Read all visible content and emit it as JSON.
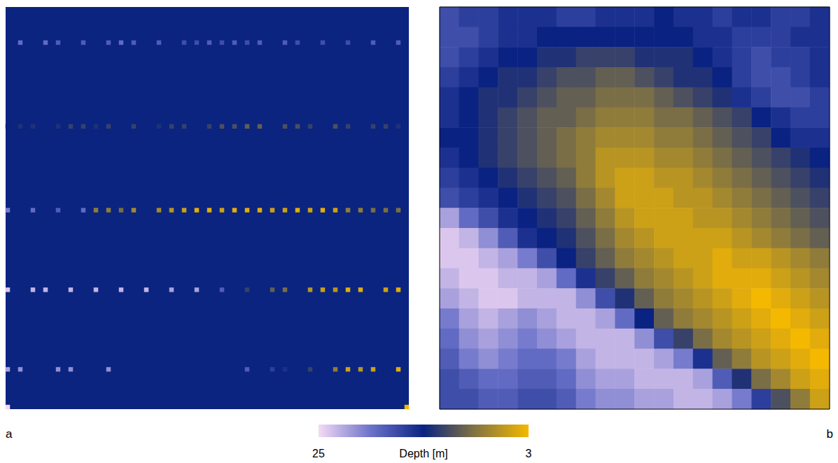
{
  "colorbar": {
    "label": "Depth [m]",
    "range": [
      25,
      3
    ],
    "ticks": [
      25,
      3
    ]
  },
  "chart_data": [
    {
      "type": "heatmap",
      "annotation": "a",
      "tick_labels": false,
      "shape": [
        96,
        96
      ],
      "line_columns": [
        0,
        3,
        6,
        9,
        12,
        15,
        18,
        21,
        24,
        27,
        30,
        33,
        36,
        39,
        42,
        45,
        48,
        51,
        54,
        57,
        60,
        63,
        66,
        69,
        72,
        75,
        78,
        81,
        84,
        87,
        90,
        93
      ],
      "lines": [
        {
          "row": 8,
          "values": [
            null,
            19,
            null,
            19,
            18,
            null,
            18,
            null,
            18,
            19,
            18,
            null,
            18,
            null,
            17,
            17,
            18,
            17,
            18,
            17,
            18,
            null,
            18,
            17,
            null,
            17,
            null,
            17,
            null,
            18,
            null,
            18
          ]
        },
        {
          "row": 28,
          "values": [
            14,
            13,
            13,
            null,
            13,
            12,
            12,
            13,
            12,
            null,
            12,
            null,
            13,
            12,
            12,
            null,
            12,
            11,
            11,
            10,
            10,
            null,
            11,
            11,
            12,
            null,
            11,
            12,
            null,
            12,
            12,
            13
          ]
        },
        {
          "row": 48,
          "values": [
            20,
            null,
            19,
            null,
            18,
            null,
            19,
            8,
            8,
            9,
            7,
            null,
            7,
            6,
            5,
            4,
            4,
            5,
            4,
            4,
            4,
            5,
            5,
            4,
            5,
            4,
            5,
            8,
            8,
            9,
            9,
            9
          ]
        },
        {
          "row": 67,
          "values": [
            24,
            null,
            23,
            23,
            null,
            23,
            null,
            23,
            null,
            23,
            null,
            23,
            null,
            22,
            null,
            22,
            null,
            18,
            null,
            12,
            null,
            10,
            9,
            null,
            6,
            5,
            6,
            4,
            4,
            null,
            5,
            4
          ]
        },
        {
          "row": 86,
          "values": [
            22,
            21,
            null,
            null,
            21,
            21,
            null,
            null,
            21,
            null,
            null,
            null,
            null,
            null,
            null,
            null,
            null,
            null,
            null,
            18,
            null,
            16,
            15,
            null,
            12,
            null,
            8,
            5,
            6,
            5,
            null,
            4
          ]
        }
      ],
      "points": [
        [
          0,
          95,
          25
        ],
        [
          95,
          95,
          3
        ]
      ]
    },
    {
      "type": "heatmap",
      "annotation": "b",
      "tick_labels": false,
      "cells": [
        [
          17,
          16,
          16,
          15,
          15,
          15,
          16,
          16,
          15,
          15,
          15,
          14,
          15,
          15,
          16,
          15,
          15,
          16,
          16,
          15
        ],
        [
          17,
          17,
          16,
          15,
          15,
          14,
          14,
          14,
          14,
          14,
          14,
          14,
          14,
          15,
          15,
          16,
          16,
          16,
          15,
          15
        ],
        [
          17,
          16,
          15,
          14,
          14,
          13,
          13,
          12,
          12,
          12,
          13,
          13,
          13,
          14,
          15,
          16,
          17,
          16,
          16,
          15
        ],
        [
          16,
          15,
          14,
          13,
          13,
          12,
          11,
          11,
          10,
          10,
          11,
          12,
          13,
          13,
          14,
          16,
          17,
          17,
          16,
          15
        ],
        [
          15,
          14,
          13,
          13,
          12,
          11,
          10,
          10,
          9,
          9,
          9,
          10,
          11,
          12,
          13,
          15,
          16,
          17,
          17,
          16
        ],
        [
          15,
          14,
          13,
          12,
          11,
          10,
          10,
          9,
          8,
          8,
          8,
          9,
          9,
          10,
          11,
          12,
          14,
          15,
          16,
          16
        ],
        [
          14,
          14,
          13,
          12,
          11,
          10,
          9,
          8,
          7,
          7,
          7,
          8,
          8,
          9,
          10,
          11,
          12,
          14,
          15,
          15
        ],
        [
          15,
          14,
          13,
          12,
          11,
          10,
          9,
          8,
          6,
          6,
          6,
          7,
          7,
          8,
          9,
          10,
          11,
          12,
          13,
          14
        ],
        [
          16,
          15,
          14,
          13,
          12,
          11,
          10,
          8,
          6,
          5,
          5,
          6,
          6,
          7,
          8,
          9,
          10,
          11,
          12,
          13
        ],
        [
          17,
          16,
          15,
          14,
          13,
          12,
          11,
          9,
          7,
          5,
          5,
          5,
          6,
          6,
          7,
          8,
          9,
          10,
          11,
          12
        ],
        [
          22,
          19,
          17,
          15,
          14,
          13,
          12,
          10,
          8,
          6,
          5,
          5,
          5,
          6,
          6,
          7,
          8,
          9,
          10,
          11
        ],
        [
          24,
          23,
          21,
          18,
          15,
          14,
          13,
          11,
          9,
          7,
          6,
          5,
          5,
          5,
          5,
          6,
          7,
          8,
          9,
          10
        ],
        [
          24,
          24,
          23,
          22,
          20,
          17,
          14,
          12,
          10,
          8,
          7,
          6,
          5,
          5,
          4,
          5,
          5,
          6,
          7,
          8
        ],
        [
          23,
          24,
          24,
          23,
          23,
          22,
          19,
          15,
          12,
          10,
          8,
          7,
          6,
          5,
          4,
          4,
          4,
          5,
          6,
          7
        ],
        [
          22,
          23,
          24,
          24,
          23,
          23,
          23,
          21,
          17,
          13,
          10,
          8,
          7,
          6,
          5,
          4,
          3,
          4,
          5,
          6
        ],
        [
          20,
          22,
          23,
          22,
          21,
          22,
          23,
          23,
          22,
          19,
          14,
          10,
          8,
          7,
          6,
          5,
          4,
          3,
          4,
          5
        ],
        [
          19,
          21,
          22,
          21,
          20,
          21,
          22,
          23,
          23,
          23,
          21,
          17,
          12,
          9,
          7,
          6,
          5,
          4,
          3,
          4
        ],
        [
          18,
          20,
          21,
          20,
          19,
          19,
          20,
          22,
          23,
          23,
          23,
          22,
          20,
          15,
          10,
          8,
          6,
          5,
          4,
          3
        ],
        [
          17,
          18,
          19,
          19,
          18,
          18,
          19,
          21,
          22,
          22,
          23,
          23,
          23,
          22,
          18,
          13,
          9,
          7,
          5,
          4
        ],
        [
          17,
          17,
          18,
          18,
          17,
          17,
          18,
          20,
          21,
          21,
          22,
          22,
          23,
          23,
          22,
          20,
          16,
          11,
          8,
          5
        ]
      ]
    }
  ]
}
